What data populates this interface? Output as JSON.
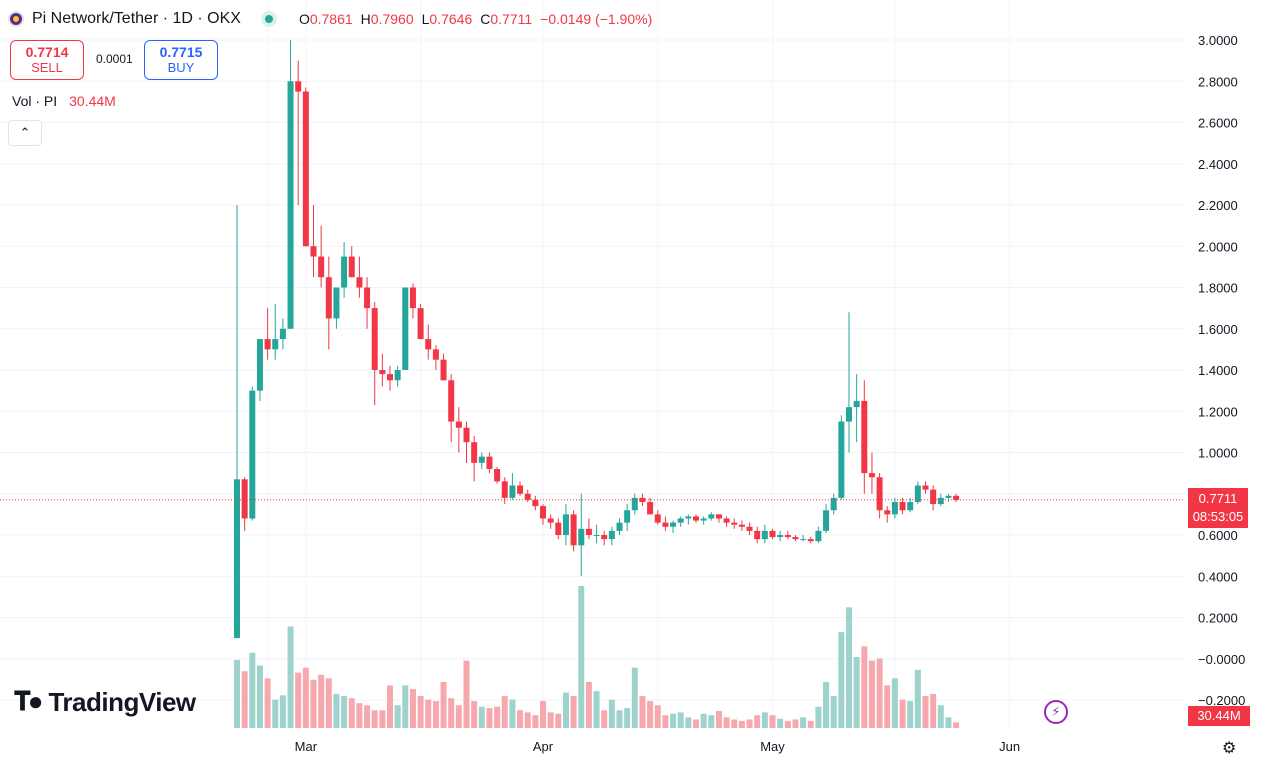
{
  "header": {
    "title": "Pi Network/Tether · 1D · OKX",
    "ohlc": [
      {
        "k": "O",
        "v": "0.7861"
      },
      {
        "k": "H",
        "v": "0.7960"
      },
      {
        "k": "L",
        "v": "0.7646"
      },
      {
        "k": "C",
        "v": "0.7711"
      }
    ],
    "change": "−0.0149 (−1.90%)"
  },
  "trade": {
    "sell_price": "0.7714",
    "sell_label": "SELL",
    "spread": "0.0001",
    "buy_price": "0.7715",
    "buy_label": "BUY"
  },
  "volume": {
    "label": "Vol · PI",
    "value": "30.44M"
  },
  "brand": "TradingView",
  "last_price": {
    "price": "0.7711",
    "countdown": "08:53:05",
    "volume": "30.44M"
  },
  "colors": {
    "up": "#26a69a",
    "down": "#f23645",
    "up_vol": "#9ed3cd",
    "down_vol": "#f7a8ae",
    "grid": "#f0f3fa"
  },
  "icons": {
    "logo": "pi-network-logo",
    "live": "market-open-dot",
    "collapse": "chevron-up-icon",
    "lightning": "lightning-icon",
    "settings": "gear-icon"
  },
  "chart_data": {
    "type": "candlestick",
    "y_ticks": [
      "3.0000",
      "2.8000",
      "2.6000",
      "2.4000",
      "2.2000",
      "2.0000",
      "1.8000",
      "1.6000",
      "1.4000",
      "1.2000",
      "1.0000",
      "0.8000",
      "0.6000",
      "0.4000",
      "0.2000",
      "−0.0000",
      "−0.2000"
    ],
    "ylim": [
      -0.2,
      3.0
    ],
    "x_ticks": [
      {
        "label": "Mar",
        "i": 9
      },
      {
        "label": "Apr",
        "i": 40
      },
      {
        "label": "May",
        "i": 70
      },
      {
        "label": "Jun",
        "i": 101
      }
    ],
    "candles": [
      [
        0.1,
        2.2,
        0.1,
        0.87,
        96
      ],
      [
        0.87,
        0.88,
        0.62,
        0.68,
        80
      ],
      [
        0.68,
        1.32,
        0.67,
        1.3,
        106
      ],
      [
        1.3,
        1.55,
        1.25,
        1.55,
        88
      ],
      [
        1.55,
        1.7,
        1.45,
        1.5,
        70
      ],
      [
        1.5,
        1.72,
        1.45,
        1.55,
        40
      ],
      [
        1.55,
        1.65,
        1.5,
        1.6,
        46
      ],
      [
        1.6,
        3.0,
        1.6,
        2.8,
        143
      ],
      [
        2.8,
        2.9,
        2.2,
        2.75,
        78
      ],
      [
        2.75,
        2.77,
        2.0,
        2.0,
        85
      ],
      [
        2.0,
        2.2,
        1.85,
        1.95,
        68
      ],
      [
        1.95,
        2.1,
        1.8,
        1.85,
        75
      ],
      [
        1.85,
        1.95,
        1.5,
        1.65,
        70
      ],
      [
        1.65,
        1.8,
        1.6,
        1.8,
        48
      ],
      [
        1.8,
        2.02,
        1.75,
        1.95,
        45
      ],
      [
        1.95,
        2.0,
        1.85,
        1.85,
        42
      ],
      [
        1.85,
        1.95,
        1.75,
        1.8,
        35
      ],
      [
        1.8,
        1.85,
        1.6,
        1.7,
        32
      ],
      [
        1.7,
        1.73,
        1.23,
        1.4,
        25
      ],
      [
        1.4,
        1.48,
        1.32,
        1.38,
        25
      ],
      [
        1.38,
        1.42,
        1.3,
        1.35,
        60
      ],
      [
        1.35,
        1.42,
        1.32,
        1.4,
        32
      ],
      [
        1.4,
        1.8,
        1.4,
        1.8,
        60
      ],
      [
        1.8,
        1.82,
        1.65,
        1.7,
        55
      ],
      [
        1.7,
        1.72,
        1.55,
        1.55,
        45
      ],
      [
        1.55,
        1.62,
        1.45,
        1.5,
        40
      ],
      [
        1.5,
        1.52,
        1.4,
        1.45,
        38
      ],
      [
        1.45,
        1.48,
        1.35,
        1.35,
        65
      ],
      [
        1.35,
        1.38,
        1.05,
        1.15,
        42
      ],
      [
        1.15,
        1.22,
        1.0,
        1.12,
        32
      ],
      [
        1.12,
        1.15,
        0.95,
        1.05,
        95
      ],
      [
        1.05,
        1.08,
        0.86,
        0.95,
        38
      ],
      [
        0.95,
        1.0,
        0.92,
        0.98,
        30
      ],
      [
        0.98,
        1.0,
        0.9,
        0.92,
        28
      ],
      [
        0.92,
        0.93,
        0.85,
        0.86,
        30
      ],
      [
        0.86,
        0.88,
        0.75,
        0.78,
        45
      ],
      [
        0.78,
        0.9,
        0.77,
        0.84,
        40
      ],
      [
        0.84,
        0.86,
        0.79,
        0.8,
        25
      ],
      [
        0.8,
        0.82,
        0.76,
        0.77,
        22
      ],
      [
        0.77,
        0.79,
        0.72,
        0.74,
        18
      ],
      [
        0.74,
        0.75,
        0.65,
        0.68,
        38
      ],
      [
        0.68,
        0.7,
        0.63,
        0.66,
        22
      ],
      [
        0.66,
        0.68,
        0.58,
        0.6,
        20
      ],
      [
        0.6,
        0.75,
        0.55,
        0.7,
        50
      ],
      [
        0.7,
        0.72,
        0.52,
        0.55,
        45
      ],
      [
        0.55,
        0.8,
        0.4,
        0.63,
        200
      ],
      [
        0.63,
        0.68,
        0.58,
        0.6,
        65
      ],
      [
        0.6,
        0.65,
        0.56,
        0.6,
        52
      ],
      [
        0.6,
        0.62,
        0.55,
        0.58,
        25
      ],
      [
        0.58,
        0.64,
        0.55,
        0.62,
        40
      ],
      [
        0.62,
        0.68,
        0.6,
        0.66,
        25
      ],
      [
        0.66,
        0.75,
        0.62,
        0.72,
        28
      ],
      [
        0.72,
        0.8,
        0.7,
        0.78,
        85
      ],
      [
        0.78,
        0.8,
        0.74,
        0.76,
        45
      ],
      [
        0.76,
        0.78,
        0.7,
        0.7,
        38
      ],
      [
        0.7,
        0.72,
        0.65,
        0.66,
        32
      ],
      [
        0.66,
        0.69,
        0.62,
        0.64,
        18
      ],
      [
        0.64,
        0.67,
        0.61,
        0.66,
        20
      ],
      [
        0.66,
        0.69,
        0.64,
        0.68,
        22
      ],
      [
        0.68,
        0.7,
        0.65,
        0.69,
        15
      ],
      [
        0.69,
        0.7,
        0.66,
        0.67,
        12
      ],
      [
        0.67,
        0.69,
        0.65,
        0.68,
        20
      ],
      [
        0.68,
        0.71,
        0.67,
        0.7,
        18
      ],
      [
        0.7,
        0.7,
        0.66,
        0.68,
        24
      ],
      [
        0.68,
        0.69,
        0.64,
        0.66,
        15
      ],
      [
        0.66,
        0.68,
        0.63,
        0.65,
        12
      ],
      [
        0.65,
        0.67,
        0.62,
        0.64,
        10
      ],
      [
        0.64,
        0.66,
        0.6,
        0.62,
        12
      ],
      [
        0.62,
        0.64,
        0.56,
        0.58,
        18
      ],
      [
        0.58,
        0.65,
        0.56,
        0.62,
        22
      ],
      [
        0.62,
        0.63,
        0.58,
        0.59,
        18
      ],
      [
        0.59,
        0.62,
        0.57,
        0.6,
        13
      ],
      [
        0.6,
        0.62,
        0.58,
        0.59,
        10
      ],
      [
        0.59,
        0.6,
        0.57,
        0.58,
        12
      ],
      [
        0.58,
        0.6,
        0.57,
        0.58,
        15
      ],
      [
        0.58,
        0.59,
        0.56,
        0.57,
        10
      ],
      [
        0.57,
        0.64,
        0.56,
        0.62,
        30
      ],
      [
        0.62,
        0.75,
        0.61,
        0.72,
        65
      ],
      [
        0.72,
        0.8,
        0.7,
        0.78,
        45
      ],
      [
        0.78,
        1.18,
        0.77,
        1.15,
        135
      ],
      [
        1.15,
        1.68,
        1.0,
        1.22,
        170
      ],
      [
        1.22,
        1.38,
        1.05,
        1.25,
        100
      ],
      [
        1.25,
        1.35,
        0.8,
        0.9,
        115
      ],
      [
        0.9,
        1.0,
        0.8,
        0.88,
        95
      ],
      [
        0.88,
        0.9,
        0.68,
        0.72,
        98
      ],
      [
        0.72,
        0.74,
        0.66,
        0.7,
        60
      ],
      [
        0.7,
        0.78,
        0.68,
        0.76,
        70
      ],
      [
        0.76,
        0.78,
        0.7,
        0.72,
        40
      ],
      [
        0.72,
        0.78,
        0.71,
        0.76,
        38
      ],
      [
        0.76,
        0.86,
        0.75,
        0.84,
        82
      ],
      [
        0.84,
        0.86,
        0.8,
        0.82,
        45
      ],
      [
        0.82,
        0.84,
        0.72,
        0.75,
        48
      ],
      [
        0.75,
        0.8,
        0.74,
        0.78,
        32
      ],
      [
        0.78,
        0.8,
        0.76,
        0.79,
        15
      ],
      [
        0.79,
        0.8,
        0.76,
        0.77,
        8
      ]
    ]
  }
}
